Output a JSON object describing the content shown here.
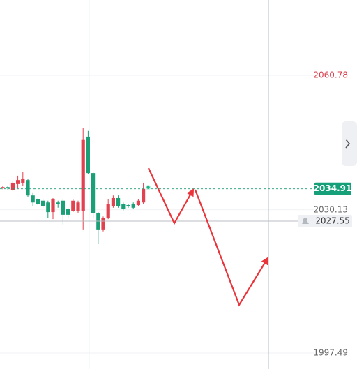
{
  "chart_data": {
    "type": "candlestick",
    "open": [
      2035.0,
      2035.3,
      2034.7,
      2036.0,
      2036.3,
      2036.9,
      2033.4,
      2032.5,
      2032.2,
      2031.8,
      2029.6,
      2031.8,
      2032.2,
      2030.3,
      2029.9,
      2029.9,
      2029.9,
      2046.8,
      2038.5,
      2029.3,
      2025.5,
      2028.3,
      2030.9,
      2032.8,
      2031.5,
      2031.2,
      2031.5,
      2031.2,
      2031.8
    ],
    "high": [
      2035.6,
      2035.6,
      2036.6,
      2037.9,
      2038.8,
      2037.2,
      2034.1,
      2032.8,
      2032.5,
      2032.2,
      2032.8,
      2032.2,
      2032.5,
      2030.6,
      2032.5,
      2032.2,
      2048.7,
      2048.1,
      2038.8,
      2029.6,
      2028.6,
      2032.5,
      2033.4,
      2033.4,
      2031.8,
      2031.5,
      2031.8,
      2032.5,
      2036.3
    ],
    "low": [
      2034.8,
      2034.7,
      2034.4,
      2035.0,
      2035.6,
      2033.1,
      2031.0,
      2031.2,
      2030.6,
      2028.3,
      2028.0,
      2030.6,
      2026.8,
      2028.3,
      2029.6,
      2029.3,
      2025.5,
      2038.2,
      2028.3,
      2022.3,
      2025.2,
      2028.0,
      2030.6,
      2030.6,
      2030.0,
      2030.6,
      2030.3,
      2030.9,
      2031.5
    ],
    "close": [
      2035.3,
      2035.0,
      2036.3,
      2036.9,
      2037.2,
      2033.4,
      2031.8,
      2031.5,
      2030.9,
      2029.6,
      2032.5,
      2031.5,
      2029.0,
      2029.0,
      2032.2,
      2031.8,
      2046.2,
      2038.5,
      2029.3,
      2025.5,
      2028.3,
      2031.5,
      2032.8,
      2030.9,
      2030.3,
      2030.9,
      2030.6,
      2032.2,
      2034.9
    ],
    "up_color": "#e2424f",
    "down_color": "#1a9f77",
    "ylim": [
      1993.84,
      2077.95
    ],
    "yticks": [
      2060.78,
      2030.13,
      1997.49
    ],
    "last_price": 2034.91,
    "crosshair_price": 2027.55
  }
}
